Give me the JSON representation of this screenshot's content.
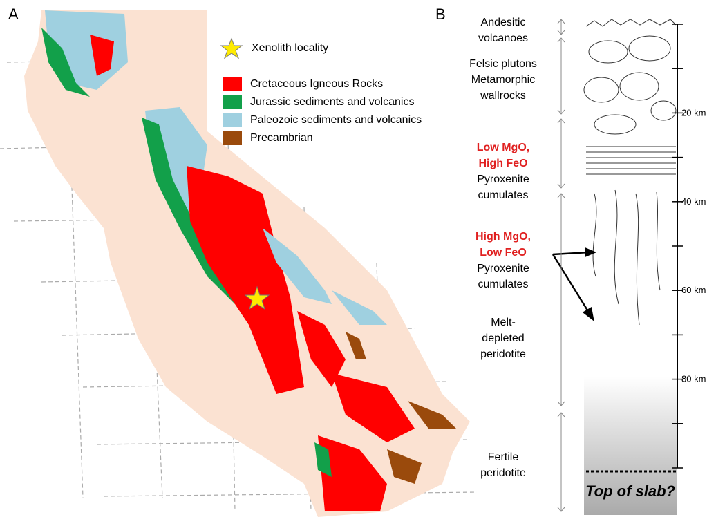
{
  "panel_a": {
    "label": "A",
    "legend": {
      "marker": "Xenolith locality",
      "items": [
        {
          "label": "Cretaceous Igneous Rocks",
          "color": "#ff0000"
        },
        {
          "label": "Jurassic sediments and volcanics",
          "color": "#12a04a"
        },
        {
          "label": "Paleozoic sediments and volcanics",
          "color": "#9fd0e0"
        },
        {
          "label": "Precambrian",
          "color": "#9a4a0c"
        }
      ]
    }
  },
  "panel_b": {
    "label": "B",
    "zones": [
      {
        "lines": [
          "Andesitic",
          "volcanoes"
        ]
      },
      {
        "lines": [
          "Felsic plutons",
          "Metamorphic",
          "wallrocks"
        ]
      },
      {
        "highlight": [
          "Low MgO,",
          "High FeO"
        ],
        "lines": [
          "Pyroxenite",
          "cumulates"
        ]
      },
      {
        "highlight": [
          "High MgO,",
          "Low FeO"
        ],
        "lines": [
          "Pyroxenite",
          "cumulates"
        ]
      },
      {
        "lines": [
          "Melt-",
          "depleted",
          "peridotite"
        ]
      },
      {
        "lines": [
          "Fertile",
          "peridotite"
        ]
      }
    ],
    "depth_labels": [
      "20 km",
      "40 km",
      "60 km",
      "80 km"
    ],
    "slab_label": "Top of slab?"
  }
}
